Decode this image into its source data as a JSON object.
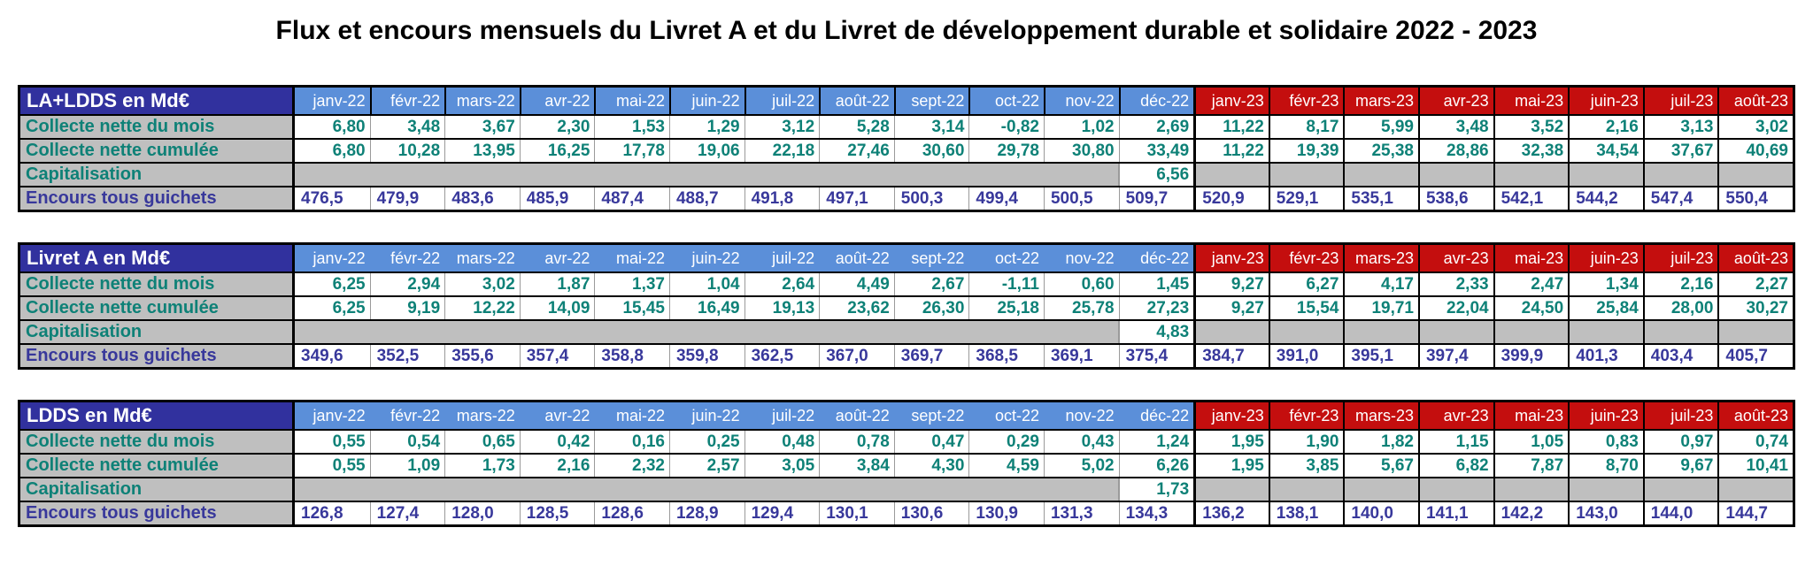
{
  "title": "Flux et encours mensuels du Livret A et du Livret de développement durable et solidaire 2022 - 2023",
  "months": [
    "janv-22",
    "févr-22",
    "mars-22",
    "avr-22",
    "mai-22",
    "juin-22",
    "juil-22",
    "août-22",
    "sept-22",
    "oct-22",
    "nov-22",
    "déc-22",
    "janv-23",
    "févr-23",
    "mars-23",
    "avr-23",
    "mai-23",
    "juin-23",
    "juil-23",
    "août-23"
  ],
  "row_labels": {
    "collecte_mois": "Collecte nette du mois",
    "collecte_cumulee": "Collecte nette cumulée",
    "capitalisation": "Capitalisation",
    "encours": "Encours tous guichets"
  },
  "colors": {
    "header_navy": "#31319E",
    "header_blue_2022": "#5B8FD9",
    "header_red_2023": "#C40E0E",
    "label_gray": "#BFBFBF",
    "value_teal": "#0E8177",
    "encours_navy": "#38389B"
  },
  "tables": [
    {
      "id": "la-ldds",
      "title": "LA+LDDS en Md€",
      "header_2022_borders": true,
      "collecte_mois": [
        "6,80",
        "3,48",
        "3,67",
        "2,30",
        "1,53",
        "1,29",
        "3,12",
        "5,28",
        "3,14",
        "-0,82",
        "1,02",
        "2,69",
        "11,22",
        "8,17",
        "5,99",
        "3,48",
        "3,52",
        "2,16",
        "3,13",
        "3,02"
      ],
      "collecte_cumulee": [
        "6,80",
        "10,28",
        "13,95",
        "16,25",
        "17,78",
        "19,06",
        "22,18",
        "27,46",
        "30,60",
        "29,78",
        "30,80",
        "33,49",
        "11,22",
        "19,39",
        "25,38",
        "28,86",
        "32,38",
        "34,54",
        "37,67",
        "40,69"
      ],
      "capitalisation_dec22": "6,56",
      "encours": [
        "476,5",
        "479,9",
        "483,6",
        "485,9",
        "487,4",
        "488,7",
        "491,8",
        "497,1",
        "500,3",
        "499,4",
        "500,5",
        "509,7",
        "520,9",
        "529,1",
        "535,1",
        "538,6",
        "542,1",
        "544,2",
        "547,4",
        "550,4"
      ]
    },
    {
      "id": "livret-a",
      "title": "Livret A en Md€",
      "header_2022_borders": false,
      "collecte_mois": [
        "6,25",
        "2,94",
        "3,02",
        "1,87",
        "1,37",
        "1,04",
        "2,64",
        "4,49",
        "2,67",
        "-1,11",
        "0,60",
        "1,45",
        "9,27",
        "6,27",
        "4,17",
        "2,33",
        "2,47",
        "1,34",
        "2,16",
        "2,27"
      ],
      "collecte_cumulee": [
        "6,25",
        "9,19",
        "12,22",
        "14,09",
        "15,45",
        "16,49",
        "19,13",
        "23,62",
        "26,30",
        "25,18",
        "25,78",
        "27,23",
        "9,27",
        "15,54",
        "19,71",
        "22,04",
        "24,50",
        "25,84",
        "28,00",
        "30,27"
      ],
      "capitalisation_dec22": "4,83",
      "encours": [
        "349,6",
        "352,5",
        "355,6",
        "357,4",
        "358,8",
        "359,8",
        "362,5",
        "367,0",
        "369,7",
        "368,5",
        "369,1",
        "375,4",
        "384,7",
        "391,0",
        "395,1",
        "397,4",
        "399,9",
        "401,3",
        "403,4",
        "405,7"
      ]
    },
    {
      "id": "ldds",
      "title": "LDDS en Md€",
      "header_2022_borders": false,
      "collecte_mois": [
        "0,55",
        "0,54",
        "0,65",
        "0,42",
        "0,16",
        "0,25",
        "0,48",
        "0,78",
        "0,47",
        "0,29",
        "0,43",
        "1,24",
        "1,95",
        "1,90",
        "1,82",
        "1,15",
        "1,05",
        "0,83",
        "0,97",
        "0,74"
      ],
      "collecte_cumulee": [
        "0,55",
        "1,09",
        "1,73",
        "2,16",
        "2,32",
        "2,57",
        "3,05",
        "3,84",
        "4,30",
        "4,59",
        "5,02",
        "6,26",
        "1,95",
        "3,85",
        "5,67",
        "6,82",
        "7,87",
        "8,70",
        "9,67",
        "10,41"
      ],
      "capitalisation_dec22": "1,73",
      "encours": [
        "126,8",
        "127,4",
        "128,0",
        "128,5",
        "128,6",
        "128,9",
        "129,4",
        "130,1",
        "130,6",
        "130,9",
        "131,3",
        "134,3",
        "136,2",
        "138,1",
        "140,0",
        "141,1",
        "142,2",
        "143,0",
        "144,0",
        "144,7"
      ]
    }
  ]
}
